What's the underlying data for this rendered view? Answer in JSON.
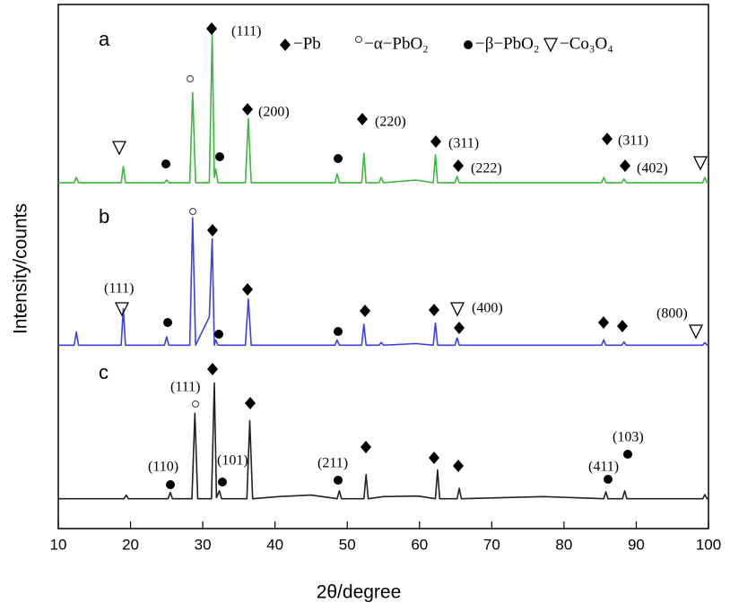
{
  "chart_data": {
    "type": "line",
    "x_label": "2θ/degree",
    "y_label": "Intensity/counts",
    "xlim": [
      10,
      100
    ],
    "xticks": [
      10,
      20,
      30,
      40,
      50,
      60,
      70,
      80,
      90,
      100
    ],
    "ylim": [
      0,
      100
    ],
    "series": [
      {
        "name": "a",
        "color": "#3cb83c",
        "x": [
          10,
          12.2,
          12.5,
          12.8,
          18.7,
          19,
          19.3,
          24.7,
          25,
          25.3,
          28.2,
          28.6,
          29,
          30.9,
          31.3,
          31.6,
          31.8,
          32.1,
          35.9,
          36.3,
          36.7,
          48.3,
          48.6,
          48.9,
          52,
          52.3,
          52.6,
          54.4,
          54.7,
          55,
          59.5,
          61.9,
          62.2,
          62.5,
          64.9,
          65.2,
          65.5,
          85.2,
          85.5,
          85.8,
          88,
          88.3,
          88.6,
          99.2,
          99.5,
          99.8,
          100
        ],
        "values": [
          66,
          66,
          67,
          66,
          66,
          69.1,
          66,
          66,
          66.5,
          66,
          66,
          83.2,
          66,
          66,
          94.5,
          67,
          68.6,
          66,
          66,
          78.2,
          66,
          66,
          67.7,
          66,
          66,
          71.6,
          66,
          66,
          67,
          66,
          66.5,
          66,
          71.3,
          66,
          66,
          67.2,
          66,
          66,
          67,
          66,
          66,
          66.7,
          66,
          66,
          67,
          66,
          66
        ]
      },
      {
        "name": "b",
        "color": "#4040e0",
        "x": [
          10,
          12.2,
          12.5,
          12.8,
          18.7,
          19,
          19.3,
          24.7,
          25,
          25.3,
          28.2,
          28.6,
          29,
          30.9,
          31.3,
          31.6,
          31.8,
          32.1,
          35.9,
          36.3,
          36.7,
          48.3,
          48.6,
          48.9,
          52,
          52.3,
          52.6,
          54.4,
          54.7,
          55,
          59.5,
          61.9,
          62.2,
          62.5,
          64.9,
          65.2,
          65.5,
          85.2,
          85.5,
          85.8,
          88,
          88.3,
          88.6,
          99.2,
          99.5,
          99.8,
          100
        ],
        "values": [
          35,
          35,
          37.5,
          35,
          35,
          42,
          35,
          35,
          36.6,
          35,
          35,
          59.3,
          35,
          40.4,
          55.3,
          35,
          36,
          35,
          35,
          43.8,
          35,
          35,
          36,
          35,
          35,
          39,
          35,
          35,
          35.5,
          35,
          35.3,
          35,
          39.2,
          35,
          35,
          36.4,
          35,
          35,
          36,
          35,
          35,
          35.6,
          35,
          35,
          35.5,
          35,
          35
        ]
      },
      {
        "name": "c",
        "color": "#222222",
        "x": [
          10,
          19.1,
          19.4,
          19.7,
          25.2,
          25.5,
          25.8,
          28.5,
          28.9,
          29.3,
          31.2,
          31.6,
          31.9,
          32.3,
          32.6,
          36.1,
          36.5,
          36.9,
          40.5,
          45,
          48.6,
          48.9,
          49.2,
          52.3,
          52.6,
          52.9,
          55,
          59.8,
          62.2,
          62.5,
          62.8,
          65.2,
          65.5,
          65.8,
          77.2,
          85.5,
          85.8,
          86.1,
          88.1,
          88.4,
          88.7,
          99.2,
          99.5,
          99.8,
          100
        ],
        "values": [
          5.7,
          5.7,
          6.4,
          5.7,
          5.7,
          6.9,
          5.7,
          5.7,
          22,
          5.7,
          5.7,
          27.8,
          5.9,
          7.2,
          5.7,
          5.7,
          20.6,
          5.7,
          6.1,
          6.4,
          5.7,
          7.2,
          5.7,
          5.7,
          10.3,
          5.7,
          6.1,
          6.2,
          5.7,
          11.2,
          5.7,
          5.7,
          7.7,
          5.7,
          6.1,
          5.7,
          7,
          5.7,
          5.7,
          7.2,
          5.7,
          5.7,
          6.5,
          5.7,
          5.7
        ]
      }
    ],
    "phase_legend": [
      "−Pb",
      "−α−PbO₂",
      "−β−PbO₂",
      "−Co₃O₄"
    ],
    "hkl_labels": [
      "(111)",
      "(200)",
      "(220)",
      "(311)",
      "(222)",
      "(311)",
      "(402)",
      "(111)",
      "(400)",
      "(800)",
      "(111)",
      "(110)",
      "(101)",
      "(211)",
      "(411)",
      "(103)"
    ]
  }
}
